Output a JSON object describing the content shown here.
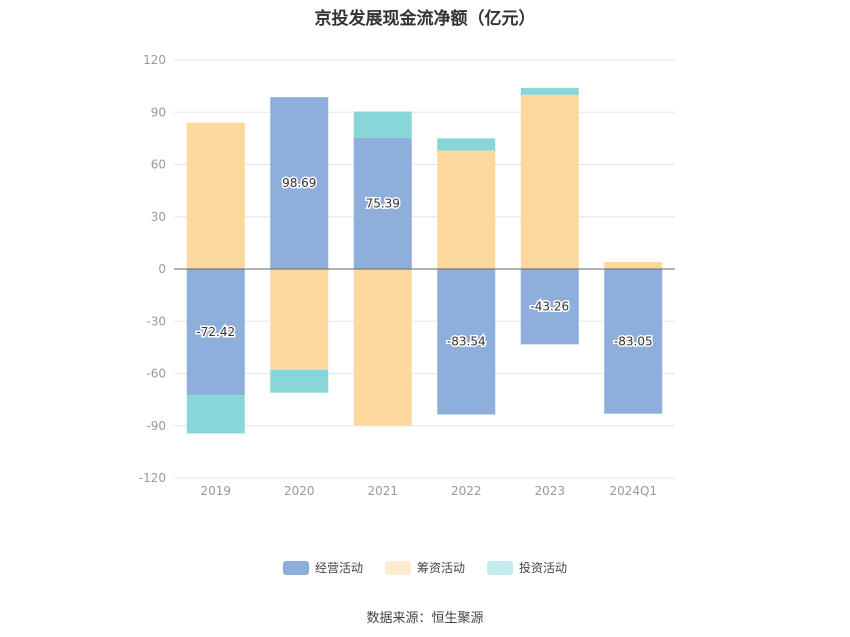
{
  "title": "京投发展现金流净额（亿元）",
  "source": "数据来源：恒生聚源",
  "chart_data": {
    "type": "bar",
    "stacked": true,
    "categories": [
      "2019",
      "2020",
      "2021",
      "2022",
      "2023",
      "2024Q1"
    ],
    "ylim": [
      -120,
      120
    ],
    "yticks": [
      120,
      90,
      60,
      30,
      0,
      -30,
      -60,
      -90,
      -120
    ],
    "grid": true,
    "legend_position": "bottom",
    "series": [
      {
        "name": "经营活动",
        "color": "#8eaedb",
        "values": [
          -72.42,
          98.69,
          75.39,
          -83.54,
          -43.26,
          -83.05
        ],
        "labels": [
          "-72.42",
          "98.69",
          "75.39",
          "-83.54",
          "-43.26",
          "-83.05"
        ]
      },
      {
        "name": "筹资活动",
        "color": "#fdd89c",
        "values": [
          84,
          -58,
          -90,
          68,
          100,
          4
        ]
      },
      {
        "name": "投资活动",
        "color": "#89d6d9",
        "values": [
          -22,
          -13,
          15,
          7,
          4,
          0
        ]
      }
    ]
  },
  "legend": [
    {
      "label": "经营活动",
      "color": "#8eaedb"
    },
    {
      "label": "筹资活动",
      "color": "#fdeccf"
    },
    {
      "label": "投资活动",
      "color": "#c2ebed"
    }
  ]
}
